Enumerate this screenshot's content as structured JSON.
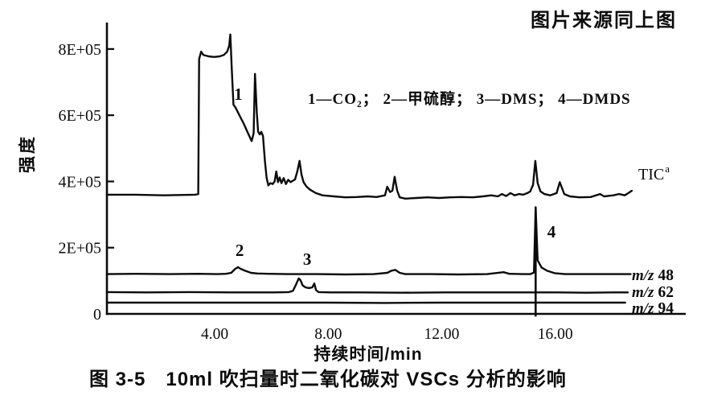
{
  "source_note": "图片来源同上图",
  "legend": "1—CO₂； 2—甲硫醇； 3—DMS； 4—DMDS",
  "caption": "图 3-5　10ml 吹扫量时二氧化碳对 VSCs 分析的影响",
  "colors": {
    "ink": "#0b0b0b",
    "background": "#ffffff"
  },
  "chart_data": {
    "type": "line",
    "title": "",
    "xlabel": "持续时间/min",
    "ylabel": "强度",
    "xlim": [
      0.2,
      20.6
    ],
    "ylim": [
      0,
      880000
    ],
    "grid": false,
    "legend_position": "upper-middle",
    "x_ticks": [
      {
        "t": 4,
        "label": "4.00"
      },
      {
        "t": 8,
        "label": "8.00"
      },
      {
        "t": 12,
        "label": "12.00"
      },
      {
        "t": 16,
        "label": "16.00"
      }
    ],
    "y_ticks": [
      {
        "v": 800000,
        "label": "8E+05"
      },
      {
        "v": 600000,
        "label": "6E+05"
      },
      {
        "v": 400000,
        "label": "4E+05"
      },
      {
        "v": 200000,
        "label": "2E+05"
      },
      {
        "v": 0,
        "label": "0"
      }
    ],
    "series": [
      {
        "name": "TIC",
        "label": {
          "text": "TIC",
          "sup": "a"
        },
        "points": [
          [
            0.2,
            360000
          ],
          [
            1.2,
            360000
          ],
          [
            2.2,
            358000
          ],
          [
            3.3,
            360000
          ],
          [
            3.42,
            362000
          ],
          [
            3.45,
            770000
          ],
          [
            3.52,
            792000
          ],
          [
            3.6,
            782000
          ],
          [
            3.78,
            778000
          ],
          [
            3.98,
            776000
          ],
          [
            4.18,
            778000
          ],
          [
            4.32,
            782000
          ],
          [
            4.44,
            792000
          ],
          [
            4.51,
            810000
          ],
          [
            4.55,
            844000
          ],
          [
            4.6,
            740000
          ],
          [
            4.66,
            632000
          ],
          [
            4.74,
            622000
          ],
          [
            4.88,
            598000
          ],
          [
            5.02,
            575000
          ],
          [
            5.16,
            548000
          ],
          [
            5.3,
            522000
          ],
          [
            5.37,
            545000
          ],
          [
            5.42,
            725000
          ],
          [
            5.48,
            610000
          ],
          [
            5.53,
            550000
          ],
          [
            5.59,
            542000
          ],
          [
            5.64,
            550000
          ],
          [
            5.7,
            538000
          ],
          [
            5.77,
            460000
          ],
          [
            5.83,
            410000
          ],
          [
            5.89,
            388000
          ],
          [
            5.96,
            395000
          ],
          [
            6.04,
            392000
          ],
          [
            6.11,
            400000
          ],
          [
            6.17,
            430000
          ],
          [
            6.23,
            398000
          ],
          [
            6.29,
            412000
          ],
          [
            6.35,
            395000
          ],
          [
            6.43,
            410000
          ],
          [
            6.51,
            392000
          ],
          [
            6.59,
            405000
          ],
          [
            6.67,
            398000
          ],
          [
            6.75,
            402000
          ],
          [
            6.83,
            406000
          ],
          [
            6.91,
            430000
          ],
          [
            6.99,
            462000
          ],
          [
            7.06,
            420000
          ],
          [
            7.13,
            398000
          ],
          [
            7.23,
            385000
          ],
          [
            7.36,
            375000
          ],
          [
            7.56,
            365000
          ],
          [
            7.8,
            358000
          ],
          [
            8.2,
            355000
          ],
          [
            8.6,
            352000
          ],
          [
            9.0,
            353000
          ],
          [
            9.4,
            355000
          ],
          [
            9.7,
            353000
          ],
          [
            10.0,
            358000
          ],
          [
            10.08,
            384000
          ],
          [
            10.18,
            368000
          ],
          [
            10.26,
            372000
          ],
          [
            10.34,
            414000
          ],
          [
            10.43,
            372000
          ],
          [
            10.52,
            352000
          ],
          [
            10.72,
            348000
          ],
          [
            11.1,
            350000
          ],
          [
            11.5,
            352000
          ],
          [
            11.9,
            350000
          ],
          [
            12.3,
            352000
          ],
          [
            12.7,
            353000
          ],
          [
            13.1,
            352000
          ],
          [
            13.45,
            355000
          ],
          [
            13.75,
            358000
          ],
          [
            13.98,
            355000
          ],
          [
            14.12,
            362000
          ],
          [
            14.27,
            356000
          ],
          [
            14.42,
            365000
          ],
          [
            14.57,
            358000
          ],
          [
            14.72,
            362000
          ],
          [
            14.87,
            360000
          ],
          [
            15.02,
            365000
          ],
          [
            15.12,
            370000
          ],
          [
            15.22,
            390000
          ],
          [
            15.3,
            462000
          ],
          [
            15.38,
            395000
          ],
          [
            15.48,
            370000
          ],
          [
            15.62,
            362000
          ],
          [
            15.82,
            358000
          ],
          [
            16.05,
            365000
          ],
          [
            16.16,
            398000
          ],
          [
            16.24,
            380000
          ],
          [
            16.32,
            362000
          ],
          [
            16.52,
            355000
          ],
          [
            16.85,
            352000
          ],
          [
            17.25,
            353000
          ],
          [
            17.58,
            362000
          ],
          [
            17.72,
            355000
          ],
          [
            18.05,
            358000
          ],
          [
            18.25,
            362000
          ],
          [
            18.45,
            358000
          ],
          [
            18.58,
            365000
          ],
          [
            18.7,
            372000
          ]
        ]
      },
      {
        "name": "m/z 48",
        "label": {
          "italic": "m/z",
          "text": "48"
        },
        "points": [
          [
            0.2,
            120000
          ],
          [
            1.2,
            121000
          ],
          [
            2.4,
            120000
          ],
          [
            3.4,
            121000
          ],
          [
            4.1,
            120000
          ],
          [
            4.4,
            121000
          ],
          [
            4.58,
            124000
          ],
          [
            4.72,
            136000
          ],
          [
            4.82,
            141000
          ],
          [
            4.92,
            136000
          ],
          [
            5.08,
            130000
          ],
          [
            5.28,
            124000
          ],
          [
            5.5,
            122000
          ],
          [
            5.9,
            121000
          ],
          [
            6.6,
            120000
          ],
          [
            7.6,
            120000
          ],
          [
            8.6,
            119000
          ],
          [
            9.6,
            120000
          ],
          [
            10.08,
            124000
          ],
          [
            10.22,
            130000
          ],
          [
            10.36,
            133000
          ],
          [
            10.52,
            124000
          ],
          [
            10.72,
            120000
          ],
          [
            11.6,
            120000
          ],
          [
            12.6,
            119000
          ],
          [
            13.6,
            120000
          ],
          [
            14.18,
            126000
          ],
          [
            14.38,
            121000
          ],
          [
            14.85,
            120000
          ],
          [
            15.12,
            120000
          ],
          [
            15.25,
            125000
          ],
          [
            15.31,
            322000
          ],
          [
            15.38,
            162000
          ],
          [
            15.52,
            140000
          ],
          [
            15.72,
            130000
          ],
          [
            15.98,
            123000
          ],
          [
            16.35,
            120000
          ],
          [
            17.1,
            120000
          ],
          [
            18.0,
            120000
          ],
          [
            18.66,
            120000
          ]
        ]
      },
      {
        "name": "m/z 62",
        "label": {
          "italic": "m/z",
          "text": "62"
        },
        "points": [
          [
            0.2,
            66000
          ],
          [
            1.6,
            65000
          ],
          [
            3.1,
            66000
          ],
          [
            4.6,
            65000
          ],
          [
            6.1,
            65000
          ],
          [
            6.62,
            66000
          ],
          [
            6.76,
            70000
          ],
          [
            6.86,
            88000
          ],
          [
            6.96,
            107000
          ],
          [
            7.02,
            102000
          ],
          [
            7.1,
            86000
          ],
          [
            7.2,
            80000
          ],
          [
            7.32,
            78000
          ],
          [
            7.44,
            80000
          ],
          [
            7.51,
            92000
          ],
          [
            7.57,
            72000
          ],
          [
            7.66,
            66000
          ],
          [
            8.1,
            65000
          ],
          [
            9.1,
            65000
          ],
          [
            10.6,
            64000
          ],
          [
            12.1,
            65000
          ],
          [
            13.6,
            65000
          ],
          [
            15.1,
            65000
          ],
          [
            16.1,
            65000
          ],
          [
            17.1,
            64000
          ],
          [
            18.1,
            65000
          ],
          [
            18.56,
            65000
          ]
        ]
      },
      {
        "name": "m/z 94",
        "label": {
          "italic": "m/z",
          "text": "94"
        },
        "points": [
          [
            0.2,
            34000
          ],
          [
            2.0,
            34000
          ],
          [
            4.0,
            34000
          ],
          [
            6.0,
            34000
          ],
          [
            8.0,
            34000
          ],
          [
            10.0,
            33000
          ],
          [
            12.0,
            34000
          ],
          [
            14.0,
            34000
          ],
          [
            15.2,
            34000
          ],
          [
            16.0,
            34000
          ],
          [
            17.0,
            34000
          ],
          [
            18.0,
            34000
          ],
          [
            18.47,
            34000
          ]
        ]
      }
    ],
    "peak_annotations": [
      {
        "label": "1",
        "compound": "CO₂",
        "t": 4.83,
        "v": 664000
      },
      {
        "label": "2",
        "compound": "甲硫醇",
        "t": 4.88,
        "v": 192000
      },
      {
        "label": "3",
        "compound": "DMS",
        "t": 7.26,
        "v": 165000
      },
      {
        "label": "4",
        "compound": "DMDS",
        "t": 15.87,
        "v": 248000
      }
    ],
    "dmds_spike": {
      "t": 15.31,
      "v_from": -8000,
      "v_to": 322000
    }
  }
}
